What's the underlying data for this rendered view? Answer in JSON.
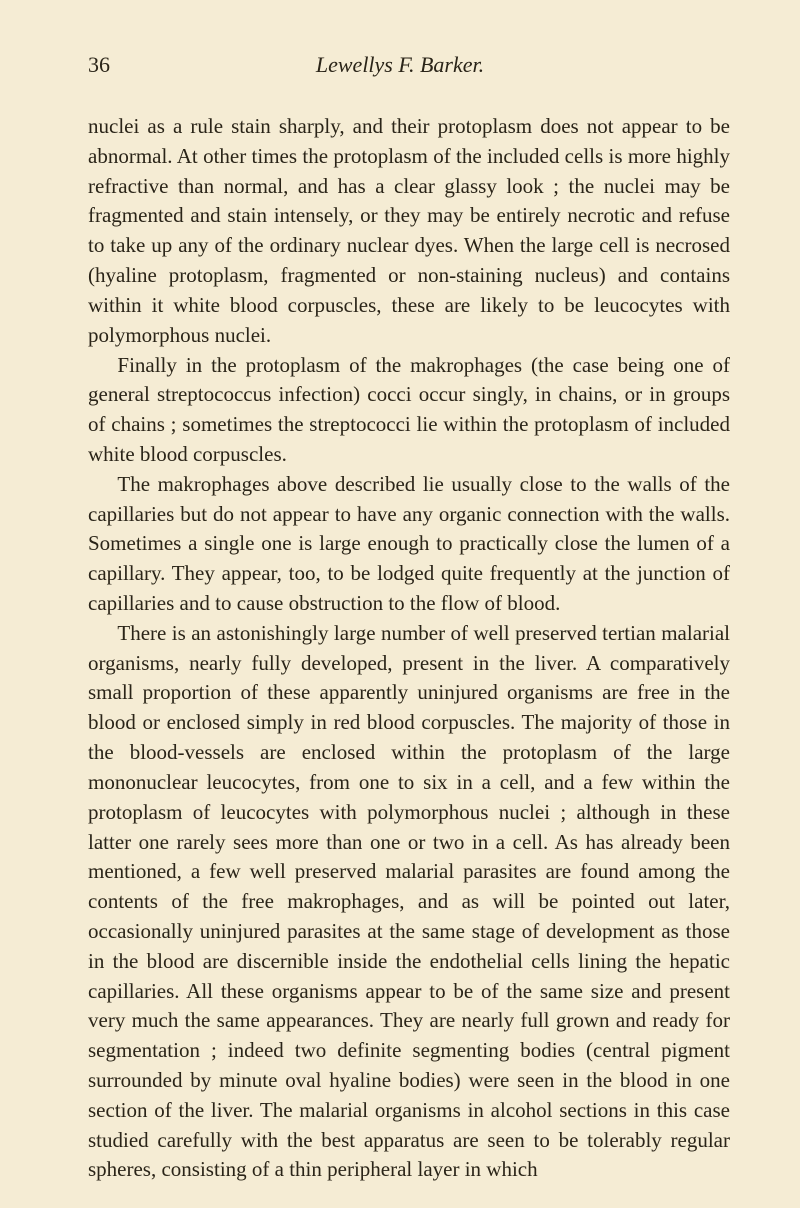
{
  "header": {
    "page_number": "36",
    "running_title": "Lewellys F. Barker."
  },
  "paragraphs": {
    "p1": "nuclei as a rule stain sharply, and their protoplasm does not appear to be abnormal. At other times the protoplasm of the included cells is more highly refractive than normal, and has a clear glassy look ; the nuclei may be fragmented and stain intensely, or they may be entirely necrotic and refuse to take up any of the ordinary nuclear dyes. When the large cell is necrosed (hyaline protoplasm, fragmented or non-staining nucleus) and contains within it white blood corpuscles, these are likely to be leucocytes with polymorphous nuclei.",
    "p2": "Finally in the protoplasm of the makrophages (the case being one of general streptococcus infection) cocci occur singly, in chains, or in groups of chains ; sometimes the streptococci lie within the protoplasm of included white blood corpuscles.",
    "p3": "The makrophages above described lie usually close to the walls of the capillaries but do not appear to have any organic connection with the walls. Sometimes a single one is large enough to practically close the lumen of a capillary. They appear, too, to be lodged quite frequently at the junction of capillaries and to cause obstruction to the flow of blood.",
    "p4": "There is an astonishingly large number of well preserved tertian malarial organisms, nearly fully developed, present in the liver. A comparatively small proportion of these apparently uninjured organisms are free in the blood or enclosed simply in red blood corpuscles. The majority of those in the blood-vessels are enclosed within the protoplasm of the large mononuclear leucocytes, from one to six in a cell, and a few within the protoplasm of leucocytes with polymorphous nuclei ; although in these latter one rarely sees more than one or two in a cell. As has already been mentioned, a few well preserved malarial parasites are found among the contents of the free makrophages, and as will be pointed out later, occasionally uninjured parasites at the same stage of development as those in the blood are discernible inside the endothelial cells lining the hepatic capillaries. All these organisms appear to be of the same size and present very much the same appearances. They are nearly full grown and ready for segmentation ; indeed two definite segmenting bodies (central pigment surrounded by minute oval hyaline bodies) were seen in the blood in one section of the liver. The malarial organisms in alcohol sections in this case studied carefully with the best apparatus are seen to be tolerably regular spheres, consisting of a thin peripheral layer in which"
  }
}
